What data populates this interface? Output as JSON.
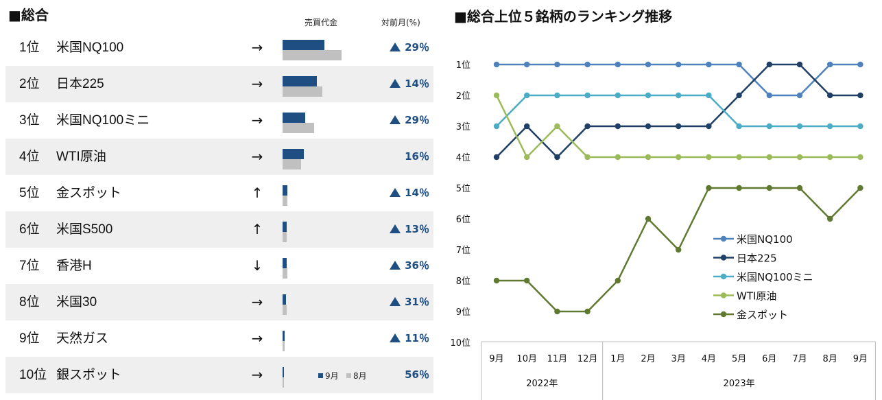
{
  "left_title": "■総合",
  "col_headers": {
    "volume": "売買代金",
    "mom": "対前月(%)"
  },
  "legend_small": {
    "sep": "9月",
    "aug": "8月",
    "sep_color": "#1f4e82",
    "aug_color": "#c0c0c0"
  },
  "ranking": [
    {
      "rank": "1位",
      "name": "米国NQ100",
      "trend": "→",
      "sep": 0.61,
      "aug": 0.86,
      "up": true,
      "pct": "29％"
    },
    {
      "rank": "2位",
      "name": "日本225",
      "trend": "→",
      "sep": 0.5,
      "aug": 0.58,
      "up": true,
      "pct": "14％"
    },
    {
      "rank": "3位",
      "name": "米国NQ100ミニ",
      "trend": "→",
      "sep": 0.33,
      "aug": 0.46,
      "up": true,
      "pct": "29％"
    },
    {
      "rank": "4位",
      "name": "WTI原油",
      "trend": "→",
      "sep": 0.31,
      "aug": 0.27,
      "up": false,
      "pct": "16％"
    },
    {
      "rank": "5位",
      "name": "金スポット",
      "trend": "↑",
      "sep": 0.07,
      "aug": 0.07,
      "up": true,
      "pct": "14％"
    },
    {
      "rank": "6位",
      "name": "米国S500",
      "trend": "↑",
      "sep": 0.06,
      "aug": 0.06,
      "up": true,
      "pct": "13％"
    },
    {
      "rank": "7位",
      "name": "香港H",
      "trend": "↓",
      "sep": 0.06,
      "aug": 0.07,
      "up": true,
      "pct": "36％"
    },
    {
      "rank": "8位",
      "name": "米国30",
      "trend": "→",
      "sep": 0.05,
      "aug": 0.06,
      "up": true,
      "pct": "31％"
    },
    {
      "rank": "9位",
      "name": "天然ガス",
      "trend": "→",
      "sep": 0.03,
      "aug": 0.03,
      "up": true,
      "pct": "11％"
    },
    {
      "rank": "10位",
      "name": "銀スポット",
      "trend": "→",
      "sep": 0.02,
      "aug": 0.01,
      "up": false,
      "pct": "56％"
    }
  ],
  "chart_data": {
    "type": "line",
    "title": "■総合上位５銘柄のランキング推移",
    "x": [
      "9月",
      "10月",
      "11月",
      "12月",
      "1月",
      "2月",
      "3月",
      "4月",
      "5月",
      "6月",
      "7月",
      "8月",
      "9月"
    ],
    "year_groups": [
      {
        "label": "2022年",
        "count": 4
      },
      {
        "label": "2023年",
        "count": 9
      }
    ],
    "y_ticks": [
      "1位",
      "2位",
      "3位",
      "4位",
      "5位",
      "6位",
      "7位",
      "8位",
      "9位",
      "10位"
    ],
    "ylim": [
      1,
      10
    ],
    "y_inverted": true,
    "legend_position": "right-middle",
    "series": [
      {
        "name": "米国NQ100",
        "color": "#4f81bd",
        "values": [
          1,
          1,
          1,
          1,
          1,
          1,
          1,
          1,
          1,
          2,
          2,
          1,
          1
        ]
      },
      {
        "name": "日本225",
        "color": "#1f3f66",
        "values": [
          4,
          3,
          4,
          3,
          3,
          3,
          3,
          3,
          2,
          1,
          1,
          2,
          2
        ]
      },
      {
        "name": "米国NQ100ミニ",
        "color": "#4bacc6",
        "values": [
          3,
          2,
          2,
          2,
          2,
          2,
          2,
          2,
          3,
          3,
          3,
          3,
          3
        ]
      },
      {
        "name": "WTI原油",
        "color": "#9bbb59",
        "values": [
          2,
          4,
          3,
          4,
          4,
          4,
          4,
          4,
          4,
          4,
          4,
          4,
          4
        ]
      },
      {
        "name": "金スポット",
        "color": "#5f7a30",
        "values": [
          8,
          8,
          9,
          9,
          8,
          6,
          7,
          5,
          5,
          5,
          5,
          6,
          5
        ]
      }
    ]
  }
}
